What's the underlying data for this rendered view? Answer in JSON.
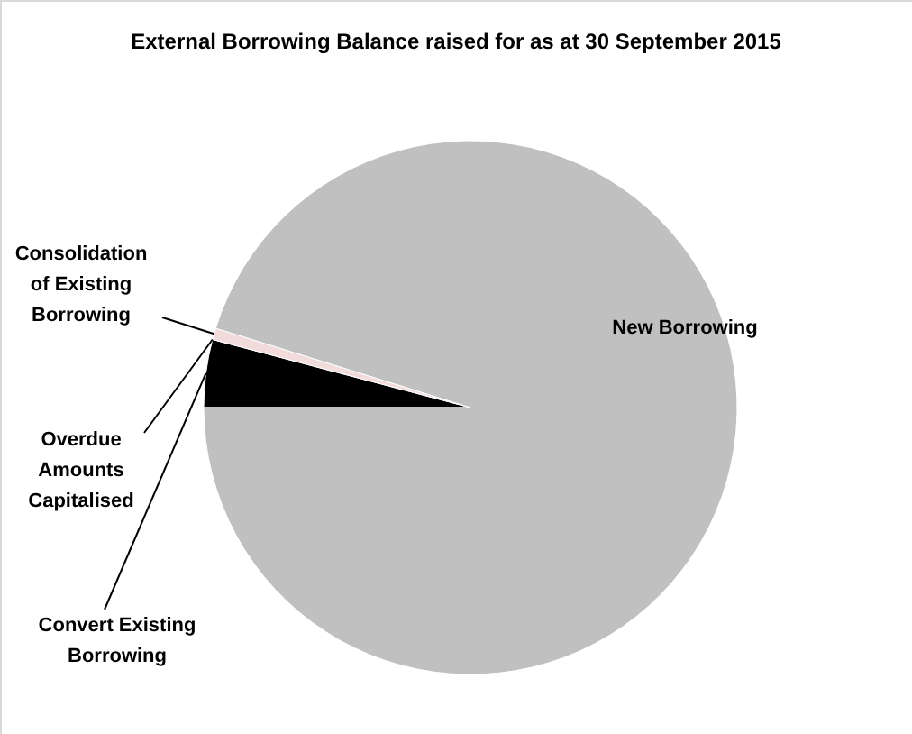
{
  "chart_data": {
    "type": "pie",
    "title": "External Borrowing Balance raised for as at 30 September 2015",
    "categories": [
      "Convert Existing Borrowing",
      "Overdue Amounts Capitalised",
      "Consolidation of Existing Borrowing",
      "New Borrowing"
    ],
    "values": [
      4.1,
      null,
      0.7,
      95.1
    ],
    "colors": [
      "#000000",
      "#7f7f7f",
      "#f2dcdb",
      "#c0c0c0"
    ],
    "legend": false
  }
}
